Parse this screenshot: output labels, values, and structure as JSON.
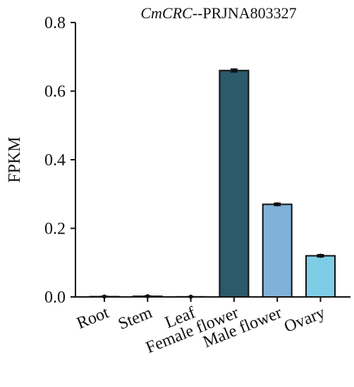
{
  "chart_data": {
    "type": "bar",
    "title": "CmCRC--PRJNA803327",
    "y_label": "FPKM",
    "categories": [
      "Root",
      "Stem",
      "Leaf",
      "Female flower",
      "Male flower",
      "Ovary"
    ],
    "values": [
      0.001,
      0.002,
      0.0005,
      0.66,
      0.27,
      0.12
    ],
    "errors": [
      0.001,
      0.001,
      0.0005,
      0.004,
      0.003,
      0.003
    ],
    "colors": [
      "#2b5a6b",
      "#2b5a6b",
      "#2b5a6b",
      "#2b5a6b",
      "#7fb1d9",
      "#7ecce6"
    ],
    "ylim": [
      0,
      0.8
    ],
    "yticks": [
      {
        "value": 0,
        "label": "0.0"
      },
      0.2,
      0.4,
      0.6,
      0.8
    ],
    "grid": false
  }
}
